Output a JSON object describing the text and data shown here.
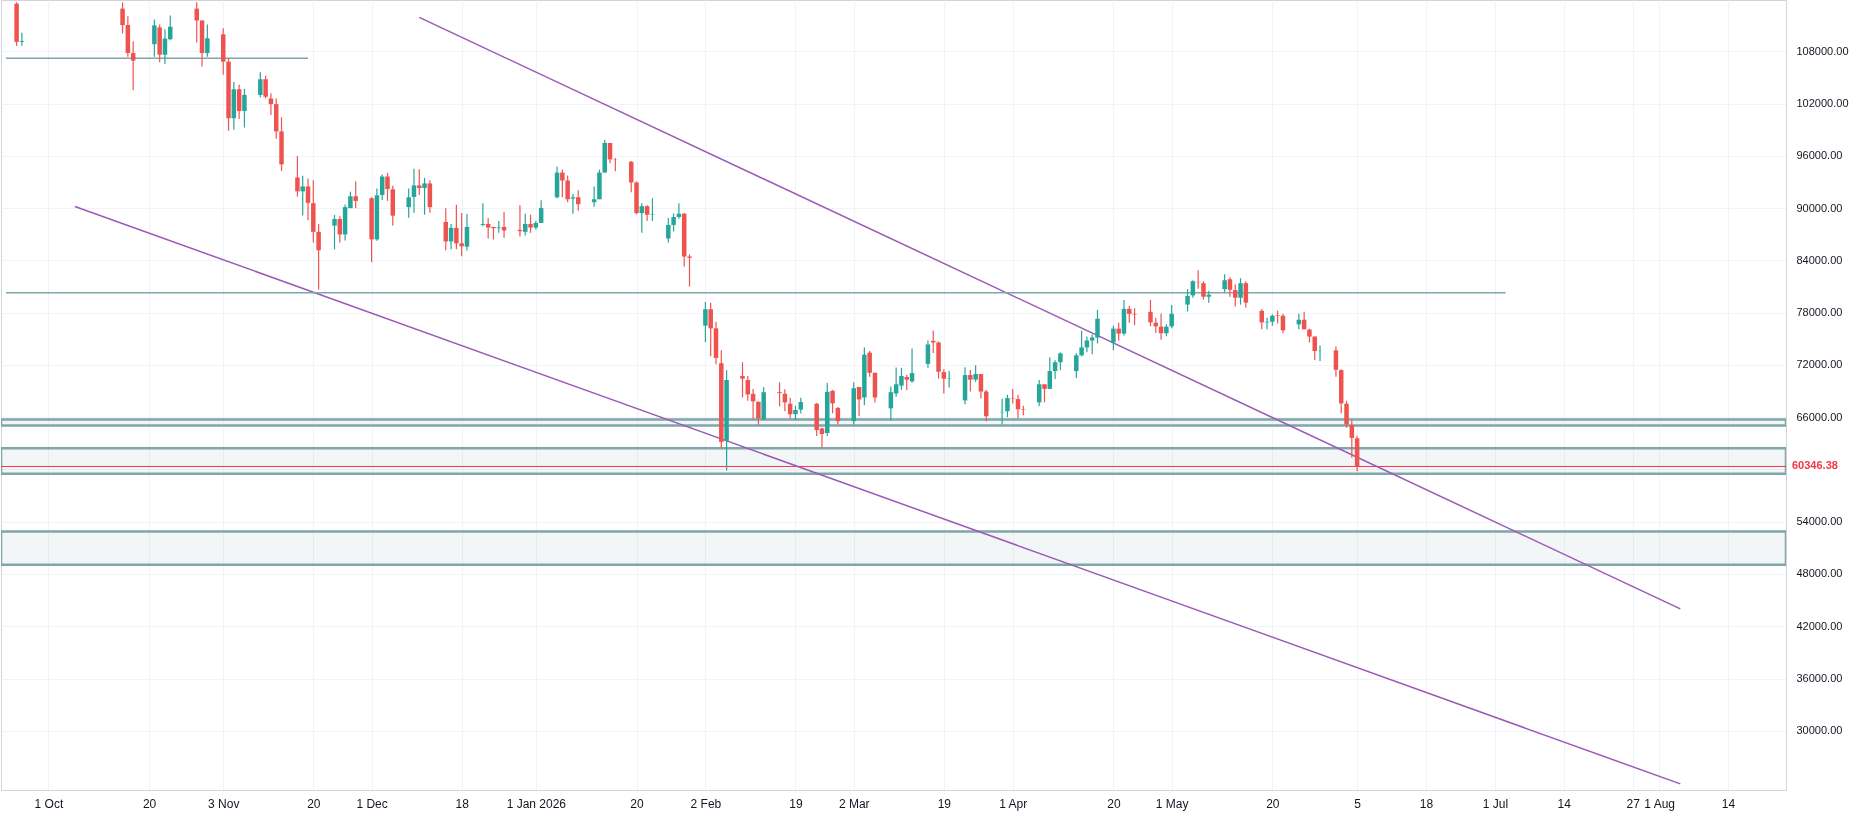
{
  "chart_data": {
    "type": "candlestick",
    "x": [
      "2025-09-25",
      "2025-09-26",
      "2025-10-15",
      "2025-10-16",
      "2025-10-17",
      "2025-10-21",
      "2025-10-22",
      "2025-10-23",
      "2025-10-24",
      "2025-10-29",
      "2025-10-30",
      "2025-10-31",
      "2025-11-03",
      "2025-11-04",
      "2025-11-05",
      "2025-11-06",
      "2025-11-07",
      "2025-11-10",
      "2025-11-11",
      "2025-11-12",
      "2025-11-13",
      "2025-11-14",
      "2025-11-17",
      "2025-11-18",
      "2025-11-19",
      "2025-11-20",
      "2025-11-21",
      "2025-11-24",
      "2025-11-25",
      "2025-11-26",
      "2025-11-27",
      "2025-11-28",
      "2025-12-01",
      "2025-12-02",
      "2025-12-03",
      "2025-12-04",
      "2025-12-05",
      "2025-12-08",
      "2025-12-09",
      "2025-12-10",
      "2025-12-11",
      "2025-12-12",
      "2025-12-15",
      "2025-12-16",
      "2025-12-17",
      "2025-12-18",
      "2025-12-19",
      "2025-12-22",
      "2025-12-23",
      "2025-12-24",
      "2025-12-25",
      "2025-12-26",
      "2025-12-29",
      "2025-12-30",
      "2025-12-31",
      "2026-01-01",
      "2026-01-02",
      "2026-01-05",
      "2026-01-06",
      "2026-01-07",
      "2026-01-08",
      "2026-01-09",
      "2026-01-12",
      "2026-01-13",
      "2026-01-14",
      "2026-01-15",
      "2026-01-16",
      "2026-01-19",
      "2026-01-20",
      "2026-01-21",
      "2026-01-22",
      "2026-01-23",
      "2026-01-26",
      "2026-01-27",
      "2026-01-28",
      "2026-01-29",
      "2026-01-30",
      "2026-02-02",
      "2026-02-03",
      "2026-02-04",
      "2026-02-05",
      "2026-02-06",
      "2026-02-09",
      "2026-02-10",
      "2026-02-11",
      "2026-02-12",
      "2026-02-13",
      "2026-02-16",
      "2026-02-17",
      "2026-02-18",
      "2026-02-19",
      "2026-02-20",
      "2026-02-23",
      "2026-02-24",
      "2026-02-25",
      "2026-02-26",
      "2026-02-27",
      "2026-03-02",
      "2026-03-03",
      "2026-03-04",
      "2026-03-05",
      "2026-03-06",
      "2026-03-09",
      "2026-03-10",
      "2026-03-11",
      "2026-03-12",
      "2026-03-13",
      "2026-03-16",
      "2026-03-17",
      "2026-03-18",
      "2026-03-19",
      "2026-03-20",
      "2026-03-23",
      "2026-03-24",
      "2026-03-25",
      "2026-03-26",
      "2026-03-27",
      "2026-03-30",
      "2026-03-31",
      "2026-04-01",
      "2026-04-02",
      "2026-04-03",
      "2026-04-06",
      "2026-04-07",
      "2026-04-08",
      "2026-04-09",
      "2026-04-10",
      "2026-04-13",
      "2026-04-14",
      "2026-04-15",
      "2026-04-16",
      "2026-04-17",
      "2026-04-20",
      "2026-04-21",
      "2026-04-22",
      "2026-04-23",
      "2026-04-24",
      "2026-04-27",
      "2026-04-28",
      "2026-04-29",
      "2026-04-30",
      "2026-05-01",
      "2026-05-04",
      "2026-05-05",
      "2026-05-06",
      "2026-05-07",
      "2026-05-08",
      "2026-05-11",
      "2026-05-12",
      "2026-05-13",
      "2026-05-14",
      "2026-05-15",
      "2026-05-18",
      "2026-05-19",
      "2026-05-20",
      "2026-05-21",
      "2026-05-22",
      "2026-05-25",
      "2026-05-26",
      "2026-05-27",
      "2026-05-28",
      "2026-05-29",
      "2026-06-01",
      "2026-06-02",
      "2026-06-03",
      "2026-06-04",
      "2026-06-05"
    ],
    "ohlc": [
      [
        113477,
        113630,
        108640,
        109093
      ],
      [
        109100,
        110150,
        108640,
        109200
      ],
      [
        112910,
        113630,
        110075,
        111020
      ],
      [
        111020,
        112041,
        107391,
        107807
      ],
      [
        107807,
        109168,
        103536,
        106938
      ],
      [
        108828,
        111663,
        107391,
        110984
      ],
      [
        110756,
        111096,
        106749,
        107618
      ],
      [
        107618,
        110529,
        106560,
        109470
      ],
      [
        109395,
        112117,
        109280,
        110832
      ],
      [
        112910,
        113630,
        109017,
        111550
      ],
      [
        111550,
        111550,
        106258,
        107807
      ],
      [
        107807,
        111096,
        107391,
        109508
      ],
      [
        109962,
        110643,
        105313,
        106825
      ],
      [
        106825,
        107240,
        98886,
        100323
      ],
      [
        100323,
        104481,
        98999,
        103649
      ],
      [
        103649,
        104179,
        100247,
        101154
      ],
      [
        101155,
        103700,
        99265,
        103000
      ],
      [
        103000,
        105600,
        102700,
        104800
      ],
      [
        104800,
        105200,
        102600,
        102800
      ],
      [
        102591,
        103200,
        100701,
        101948
      ],
      [
        101948,
        102591,
        97979,
        98811
      ],
      [
        98811,
        100436,
        94275,
        95031
      ],
      [
        93519,
        95976,
        91327,
        91931
      ],
      [
        91931,
        93708,
        89172,
        92498
      ],
      [
        92498,
        93406,
        88605,
        90608
      ],
      [
        90571,
        93217,
        86072,
        87282
      ],
      [
        87282,
        88189,
        80667,
        85165
      ],
      [
        88000,
        89210,
        85278,
        88756
      ],
      [
        88756,
        89059,
        86072,
        86980
      ],
      [
        86980,
        90419,
        86299,
        90117
      ],
      [
        90004,
        91894,
        90004,
        91364
      ],
      [
        91364,
        93066,
        90004,
        90835
      ],
      [
        91138,
        91251,
        83804,
        86413
      ],
      [
        86413,
        92272,
        86261,
        91478
      ],
      [
        91516,
        93859,
        90949,
        93633
      ],
      [
        93633,
        94048,
        90835,
        92196
      ],
      [
        92158,
        92574,
        88000,
        89134
      ],
      [
        90117,
        92272,
        88908,
        91251
      ],
      [
        91289,
        94540,
        89475,
        92612
      ],
      [
        92612,
        94464,
        91516,
        92309
      ],
      [
        92309,
        93481,
        89248,
        92839
      ],
      [
        92839,
        93217,
        89475,
        90117
      ],
      [
        88416,
        90004,
        85165,
        86186
      ],
      [
        86186,
        88189,
        85278,
        87737
      ],
      [
        87737,
        90382,
        85278,
        85959
      ],
      [
        85959,
        89437,
        84485,
        85618
      ],
      [
        85581,
        89361,
        85127,
        87849
      ],
      [
        88076,
        90571,
        87925,
        88189
      ],
      [
        88189,
        88870,
        86526,
        87774
      ],
      [
        87850,
        87850,
        86413,
        87700
      ],
      [
        87700,
        88530,
        87169,
        87774
      ],
      [
        87850,
        89550,
        86601,
        87434
      ],
      [
        87510,
        90344,
        86753,
        87358
      ],
      [
        87282,
        89361,
        86866,
        88189
      ],
      [
        88189,
        89248,
        87169,
        87774
      ],
      [
        87774,
        88530,
        87547,
        88303
      ],
      [
        88303,
        90911,
        88303,
        90004
      ],
      [
        91251,
        94767,
        91138,
        94086
      ],
      [
        94086,
        94426,
        91251,
        93179
      ],
      [
        93179,
        93746,
        90684,
        91024
      ],
      [
        91100,
        91629,
        89361,
        91251
      ],
      [
        91251,
        92045,
        89701,
        90457
      ],
      [
        90684,
        92498,
        90155,
        91024
      ],
      [
        91024,
        94426,
        91024,
        94086
      ],
      [
        94086,
        97828,
        94086,
        97488
      ],
      [
        97488,
        97488,
        95144,
        95598
      ],
      [
        95560,
        95749,
        94237,
        95523
      ],
      [
        95333,
        95409,
        91818,
        92952
      ],
      [
        92952,
        93066,
        89286,
        89437
      ],
      [
        89437,
        90571,
        87169,
        90230
      ],
      [
        90230,
        90344,
        88530,
        89248
      ],
      [
        89248,
        91138,
        88530,
        89300
      ],
      [
        86526,
        88870,
        86072,
        88076
      ],
      [
        88076,
        89399,
        87320,
        88983
      ],
      [
        88983,
        90571,
        88794,
        89361
      ],
      [
        89361,
        89437,
        83313,
        84447
      ],
      [
        84447,
        84700,
        81000,
        84300
      ],
      [
        76509,
        79231,
        74619,
        78399
      ],
      [
        78399,
        79155,
        72994,
        76207
      ],
      [
        76207,
        76963,
        72086,
        72805
      ],
      [
        72200,
        73674,
        62523,
        63166
      ],
      [
        63280,
        71406,
        59877,
        70272
      ],
      [
        70726,
        72313,
        68269,
        70423
      ],
      [
        70272,
        70726,
        67890,
        68609
      ],
      [
        68684,
        69252,
        65774,
        67815
      ],
      [
        67777,
        67777,
        65094,
        65849
      ],
      [
        65774,
        69478,
        65661,
        68873
      ],
      [
        68873,
        70007,
        67248,
        68760
      ],
      [
        68684,
        69214,
        66681,
        67702
      ],
      [
        67550,
        68231,
        65850,
        66341
      ],
      [
        66341,
        67324,
        65661,
        66832
      ],
      [
        66870,
        68231,
        66417,
        67739
      ],
      [
        67550,
        67626,
        63846,
        64527
      ],
      [
        64715,
        64791,
        62523,
        64073
      ],
      [
        64186,
        69931,
        63846,
        68911
      ],
      [
        69025,
        69138,
        66454,
        67588
      ],
      [
        67059,
        67172,
        65169,
        65547
      ],
      [
        65547,
        70007,
        65169,
        69327
      ],
      [
        69478,
        69478,
        66114,
        68042
      ],
      [
        68269,
        74014,
        67361,
        73183
      ],
      [
        73410,
        73598,
        70650,
        71104
      ],
      [
        71104,
        71104,
        67701,
        68269
      ],
      [
        67021,
        69516,
        65623,
        68873
      ],
      [
        68722,
        71709,
        68344,
        69780
      ],
      [
        69630,
        71671,
        69138,
        70726
      ],
      [
        70612,
        70839,
        69138,
        70310
      ],
      [
        70121,
        73901,
        69970,
        71066
      ],
      [
        72124,
        74808,
        71671,
        74354
      ],
      [
        74770,
        75942,
        73372,
        74581
      ],
      [
        74581,
        74695,
        70423,
        71217
      ],
      [
        71179,
        71520,
        68722,
        70423
      ],
      [
        70423,
        71293,
        69403,
        70461
      ],
      [
        67928,
        71747,
        67475,
        70839
      ],
      [
        70839,
        71406,
        68949,
        70310
      ],
      [
        70310,
        71974,
        70083,
        70953
      ],
      [
        70953,
        70953,
        68155,
        68949
      ],
      [
        68949,
        69138,
        65547,
        66114
      ],
      [
        66560,
        68118,
        65169,
        66605
      ],
      [
        66681,
        68571,
        66000,
        68193
      ],
      [
        68193,
        69251,
        67588,
        68150
      ],
      [
        68079,
        68571,
        65887,
        66908
      ],
      [
        66880,
        67324,
        66227,
        66832
      ],
      [
        67702,
        70272,
        67286,
        69780
      ],
      [
        69780,
        69780,
        67702,
        69251
      ],
      [
        69251,
        72880,
        69251,
        71293
      ],
      [
        71293,
        72540,
        70385,
        72313
      ],
      [
        72313,
        73447,
        71406,
        73334
      ],
      [
        71293,
        73334,
        70499,
        73107
      ],
      [
        73107,
        75942,
        72994,
        74014
      ],
      [
        74014,
        75261,
        73447,
        74808
      ],
      [
        74808,
        75488,
        73220,
        75148
      ],
      [
        75148,
        78323,
        74468,
        77303
      ],
      [
        74581,
        76509,
        73674,
        76169
      ],
      [
        76169,
        76849,
        74808,
        75602
      ],
      [
        75602,
        79457,
        75375,
        78437
      ],
      [
        78437,
        78777,
        76849,
        77870
      ],
      [
        77870,
        78513,
        76585,
        77795
      ],
      [
        78097,
        79457,
        76433,
        76887
      ],
      [
        76849,
        77416,
        75677,
        76433
      ],
      [
        76395,
        77870,
        74883,
        75639
      ],
      [
        75639,
        76660,
        75299,
        76395
      ],
      [
        76433,
        78890,
        76206,
        77870
      ],
      [
        78928,
        80705,
        78135,
        79911
      ],
      [
        79986,
        81726,
        79722,
        81612
      ],
      [
        81537,
        82859,
        80743,
        81499
      ],
      [
        81385,
        81612,
        79495,
        79835
      ],
      [
        79835,
        80478,
        79155,
        80062
      ],
      [
        80705,
        82405,
        80365,
        81726
      ],
      [
        81839,
        82065,
        79835,
        80629
      ],
      [
        80591,
        81272,
        78702,
        79722
      ],
      [
        79722,
        81952,
        78928,
        81385
      ],
      [
        81385,
        81612,
        78588,
        79155
      ],
      [
        78210,
        78437,
        76093,
        76887
      ],
      [
        76887,
        77416,
        76093,
        76960
      ],
      [
        76963,
        77832,
        76509,
        77643
      ],
      [
        77700,
        78210,
        76773,
        77643
      ],
      [
        77643,
        77870,
        75639,
        75980
      ],
      [
        76660,
        77870,
        76093,
        77189
      ],
      [
        77189,
        78097,
        76093,
        76093
      ],
      [
        76055,
        76169,
        74581,
        75261
      ],
      [
        75261,
        75261,
        72578,
        73598
      ],
      [
        73650,
        74241,
        72464,
        73674
      ],
      [
        73674,
        74128,
        70650,
        71443
      ],
      [
        71406,
        71520,
        66454,
        67588
      ],
      [
        67550,
        67890,
        64791,
        65169
      ],
      [
        65094,
        65661,
        61351,
        63620
      ],
      [
        63582,
        63884,
        59802,
        60346
      ]
    ],
    "series": [
      {
        "type": "line",
        "x": [
          "2025-12-10",
          "2026-08-05"
        ],
        "values": [
          111900,
          44000
        ],
        "color": "#9b59b6"
      },
      {
        "type": "line",
        "x": [
          "2025-10-06",
          "2026-08-05"
        ],
        "values": [
          90200,
          23900
        ],
        "color": "#9b59b6"
      },
      {
        "type": "line",
        "x": [
          "2025-09-23",
          "2026-07-03"
        ],
        "values": [
          80300,
          80300
        ],
        "color": "#7fa6a9"
      },
      {
        "type": "line",
        "x": [
          "2025-09-23",
          "2025-11-19"
        ],
        "values": [
          107200,
          107200
        ],
        "color": "#7fa6a9"
      }
    ],
    "bands": [
      {
        "axis": "y",
        "from": 59500,
        "to": 62450,
        "color": "#7fa6a9"
      },
      {
        "axis": "y",
        "from": 65060,
        "to": 65730,
        "color": "#7fa6a9"
      },
      {
        "axis": "y",
        "from": 49070,
        "to": 52870,
        "color": "#7fa6a9"
      }
    ],
    "ref_lines": [
      {
        "axis": "y",
        "value": 60346.38,
        "label": "60346.38",
        "color": "#f23645"
      }
    ],
    "xlim": [
      "2025-09-23",
      "2026-08-24"
    ],
    "xticks": [
      {
        "value": "2025-10-01",
        "label": "1 Oct"
      },
      {
        "value": "2025-10-20",
        "label": "20"
      },
      {
        "value": "2025-11-03",
        "label": "3 Nov"
      },
      {
        "value": "2025-11-20",
        "label": "20"
      },
      {
        "value": "2025-12-01",
        "label": "1 Dec"
      },
      {
        "value": "2025-12-18",
        "label": "18"
      },
      {
        "value": "2026-01-01",
        "label": "1 Jan 2026"
      },
      {
        "value": "2026-01-20",
        "label": "20"
      },
      {
        "value": "2026-02-02",
        "label": "2 Feb"
      },
      {
        "value": "2026-02-19",
        "label": "19"
      },
      {
        "value": "2026-03-02",
        "label": "2 Mar"
      },
      {
        "value": "2026-03-19",
        "label": "19"
      },
      {
        "value": "2026-04-01",
        "label": "1 Apr"
      },
      {
        "value": "2026-04-20",
        "label": "20"
      },
      {
        "value": "2026-05-01",
        "label": "1 May"
      },
      {
        "value": "2026-05-20",
        "label": "20"
      },
      {
        "value": "2026-06-05",
        "label": "5"
      },
      {
        "value": "2026-06-18",
        "label": "18"
      },
      {
        "value": "2026-07-01",
        "label": "1 Jul"
      },
      {
        "value": "2026-07-14",
        "label": "14"
      },
      {
        "value": "2026-07-27",
        "label": "27"
      },
      {
        "value": "2026-08-01",
        "label": "1 Aug"
      },
      {
        "value": "2026-08-14",
        "label": "14"
      }
    ],
    "ylim": [
      23200,
      113900
    ],
    "yticks": [
      {
        "value": 30000,
        "label": "30000.00"
      },
      {
        "value": 36000,
        "label": "36000.00"
      },
      {
        "value": 42000,
        "label": "42000.00"
      },
      {
        "value": 48000,
        "label": "48000.00"
      },
      {
        "value": 54000,
        "label": "54000.00"
      },
      {
        "value": 60000,
        "label": null
      },
      {
        "value": 66000,
        "label": "66000.00"
      },
      {
        "value": 72000,
        "label": "72000.00"
      },
      {
        "value": 78000,
        "label": "78000.00"
      },
      {
        "value": 84000,
        "label": "84000.00"
      },
      {
        "value": 90000,
        "label": "90000.00"
      },
      {
        "value": 96000,
        "label": "96000.00"
      },
      {
        "value": 102000,
        "label": "102000.00"
      },
      {
        "value": 108000,
        "label": "108000.00"
      }
    ],
    "grid": true
  }
}
